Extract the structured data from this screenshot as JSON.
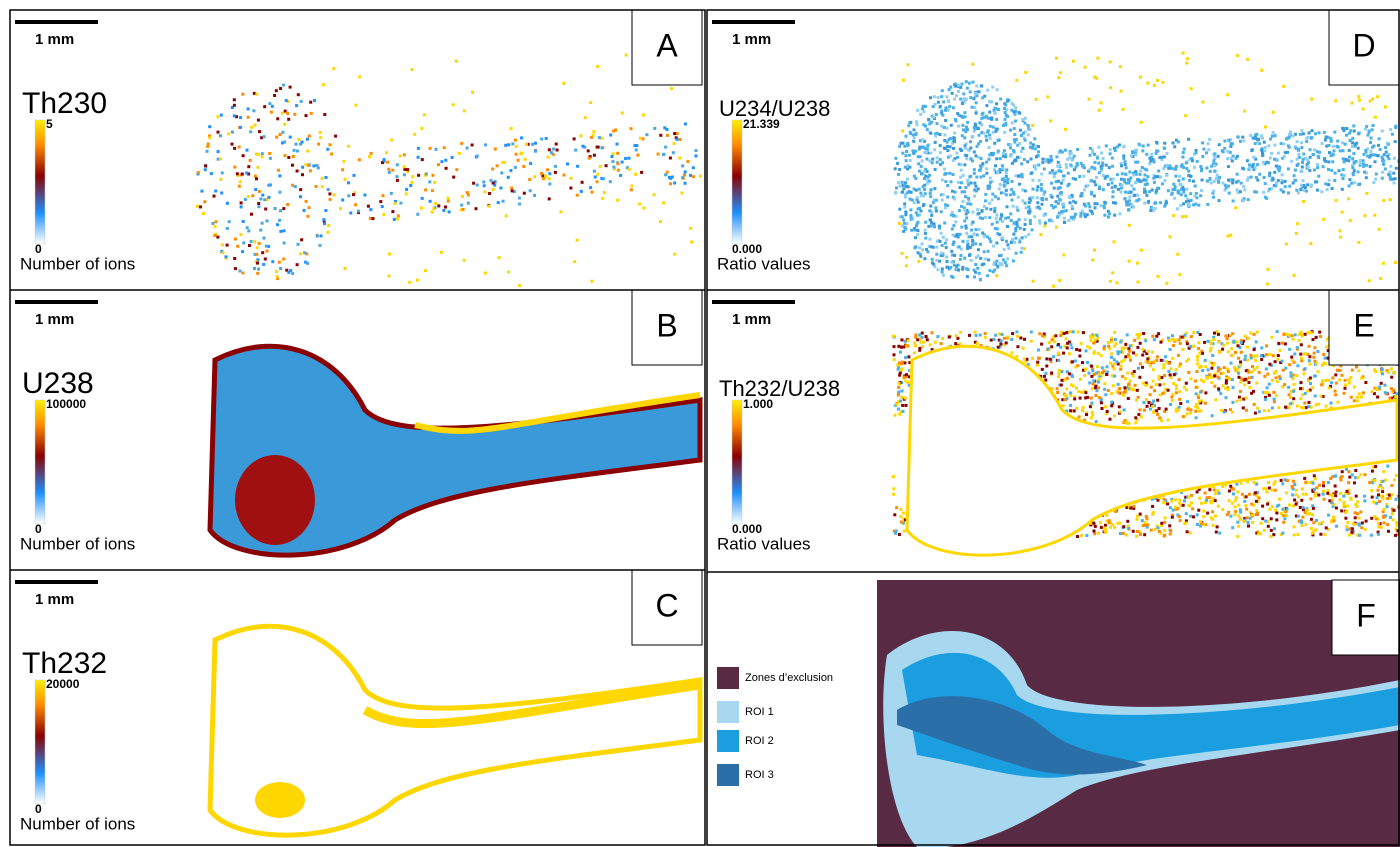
{
  "panels": [
    {
      "letter": "A",
      "scale": "1 mm",
      "label": "Th230",
      "max": "5",
      "min": "0",
      "caption": "Number of ions"
    },
    {
      "letter": "B",
      "scale": "1 mm",
      "label": "U238",
      "max": "100000",
      "min": "0",
      "caption": "Number of ions"
    },
    {
      "letter": "C",
      "scale": "1 mm",
      "label": "Th232",
      "max": "20000",
      "min": "0",
      "caption": "Number of ions"
    },
    {
      "letter": "D",
      "scale": "1 mm",
      "label": "U234/U238",
      "max": "21.339",
      "min": "0.000",
      "caption": "Ratio values"
    },
    {
      "letter": "E",
      "scale": "1 mm",
      "label": "Th232/U238",
      "max": "1.000",
      "min": "0.000",
      "caption": "Ratio values"
    }
  ],
  "legend": {
    "letter": "F",
    "items": [
      "Zones d’exclusion",
      "ROI 1",
      "ROI 2",
      "ROI 3"
    ]
  }
}
